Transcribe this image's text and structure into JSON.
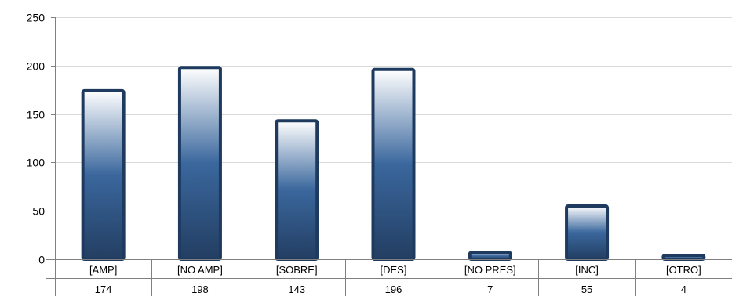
{
  "chart_data": {
    "type": "bar",
    "title": "",
    "xlabel": "",
    "ylabel": "",
    "categories": [
      "[AMP]",
      "[NO AMP]",
      "[SOBRE]",
      "[DES]",
      "[NO PRES]",
      "[INC]",
      "[OTRO]"
    ],
    "values": [
      174,
      198,
      143,
      196,
      7,
      55,
      4
    ],
    "value_labels": [
      "174",
      "198",
      "143",
      "196",
      "7",
      "55",
      "4"
    ],
    "ylim": [
      0,
      250
    ],
    "yticks": [
      0,
      50,
      100,
      150,
      200,
      250
    ],
    "ytick_labels": [
      "0",
      "50",
      "100",
      "150",
      "200",
      "250"
    ],
    "grid": true,
    "legend": "none",
    "data_table": true,
    "colors": {
      "bar_top": "#ffffff",
      "bar_mid": "#3a679d",
      "bar_bottom": "#233e62",
      "bar_border": "#1f3a5f",
      "gridline": "#d9d9d9",
      "axis": "#808080"
    }
  }
}
